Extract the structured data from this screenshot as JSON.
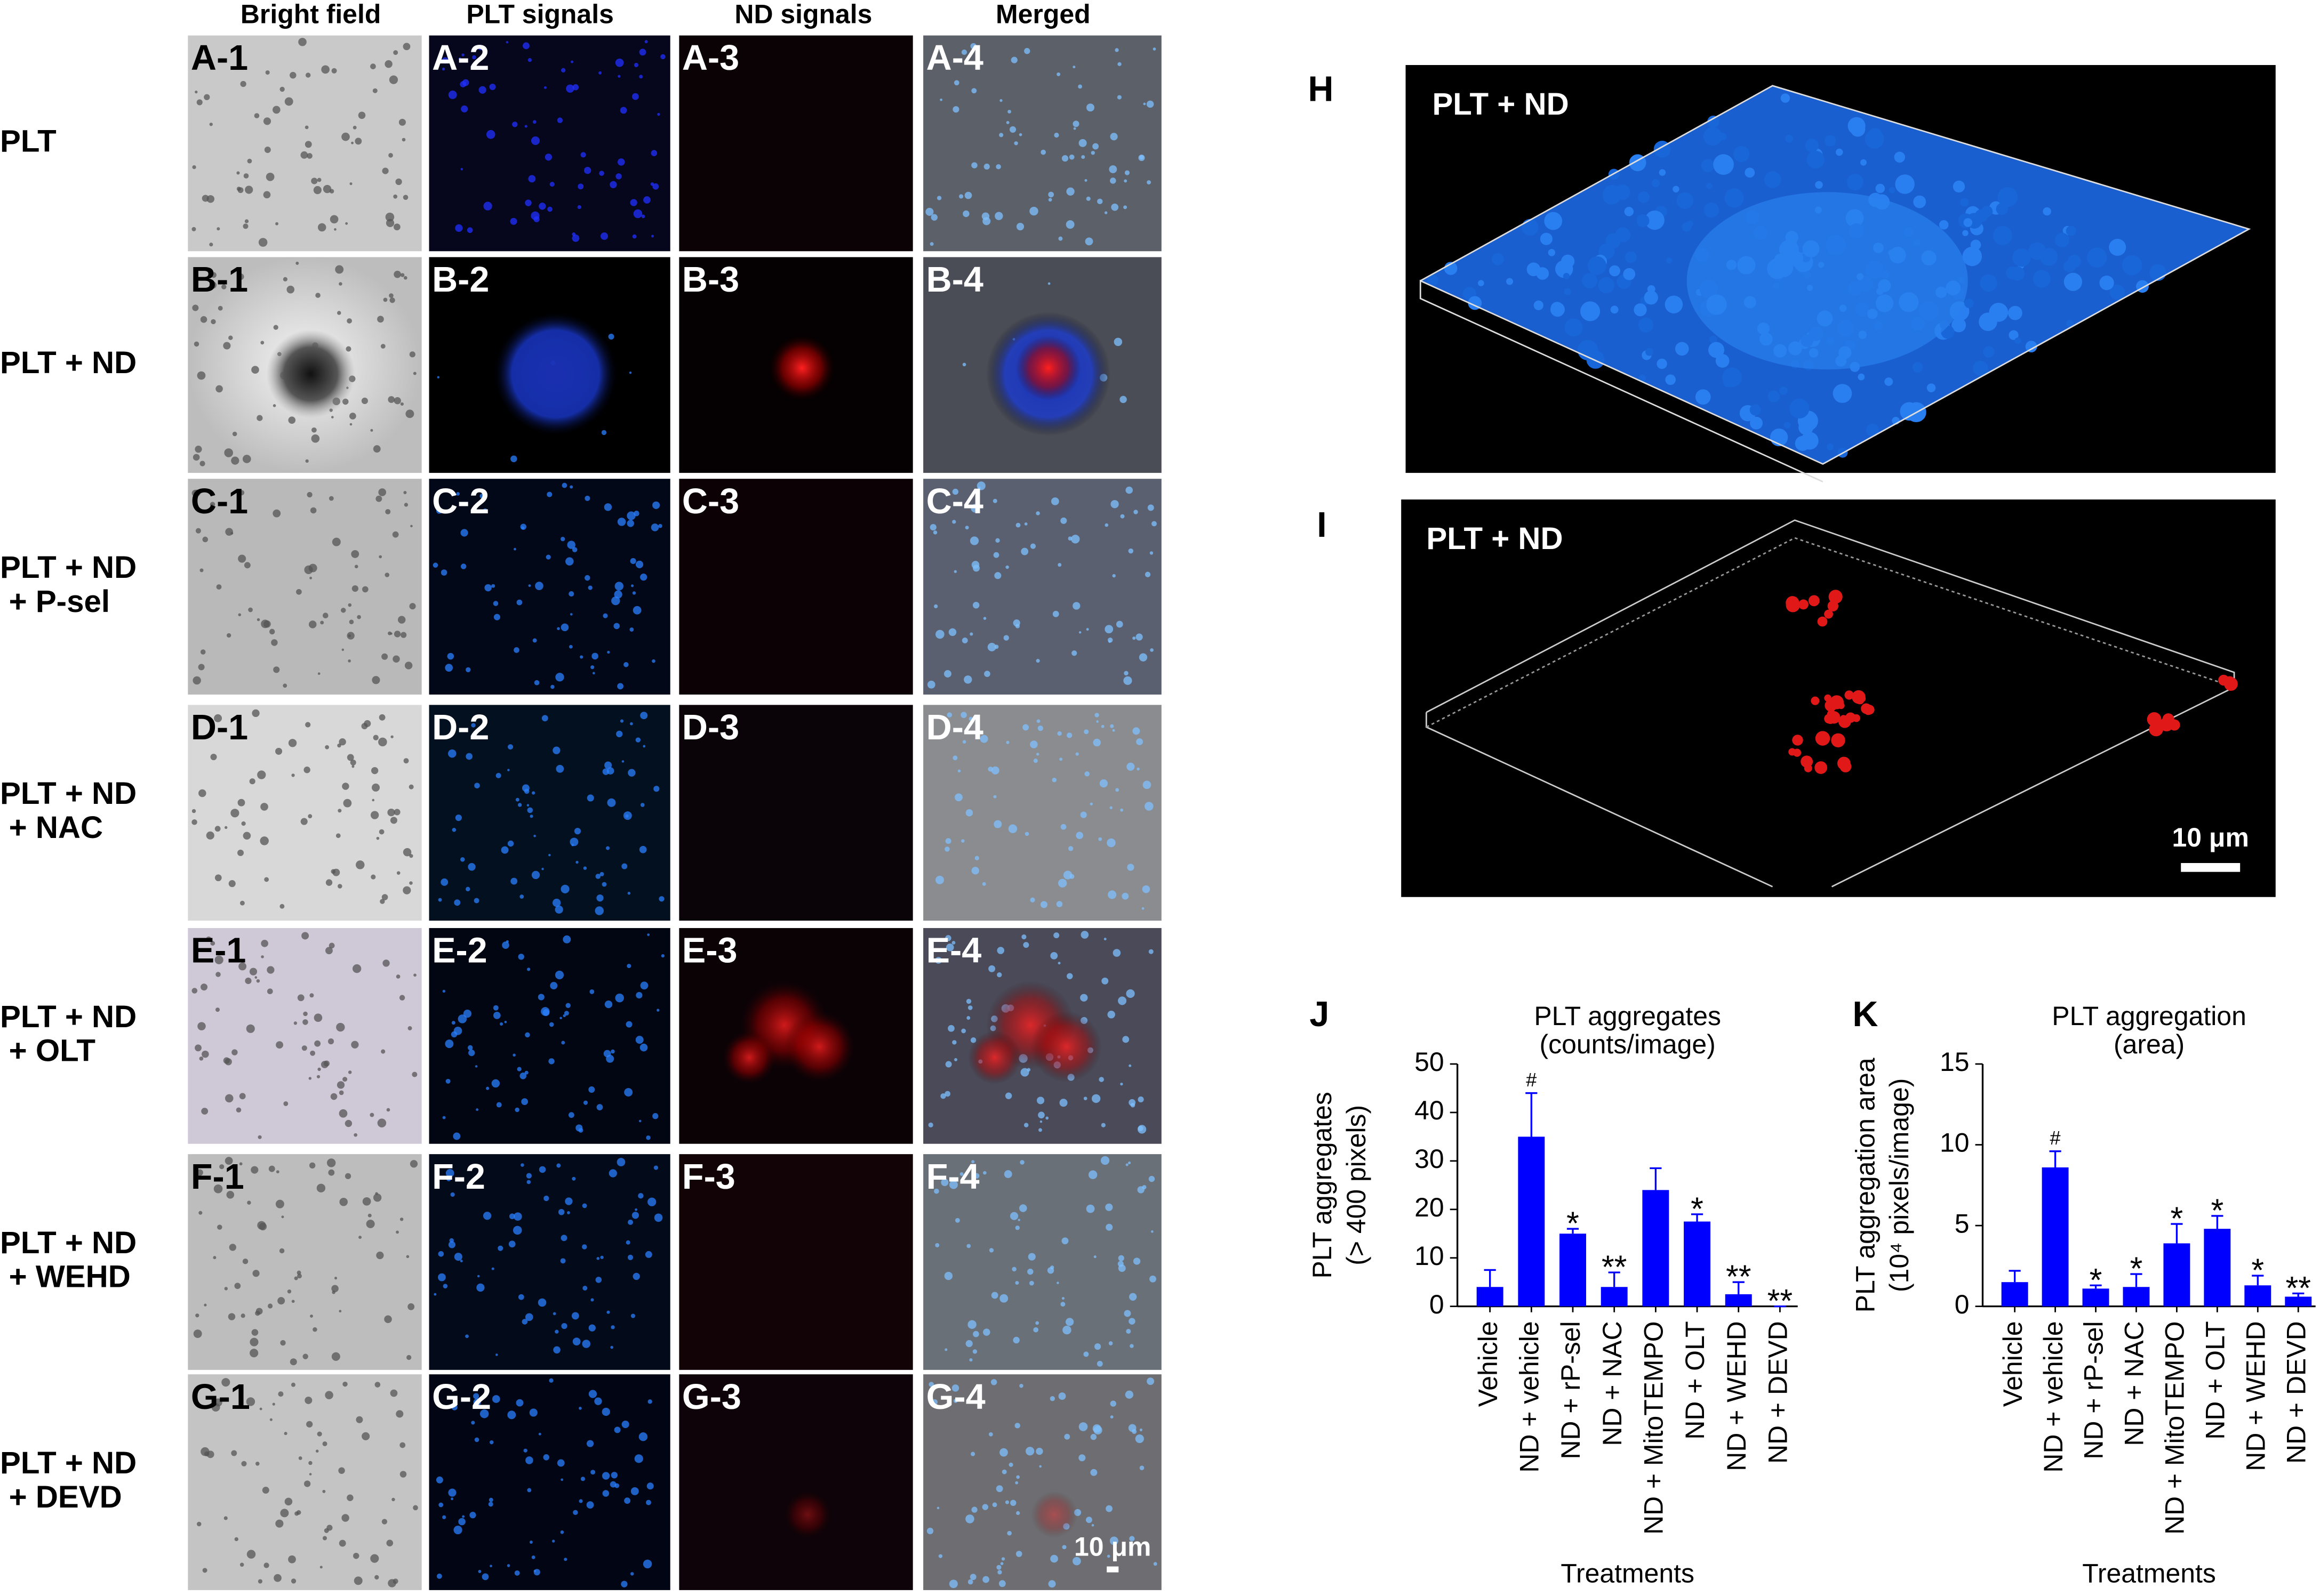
{
  "figure": {
    "column_headers": [
      "Bright field",
      "PLT signals",
      "ND signals",
      "Merged"
    ],
    "rows": [
      {
        "label": [
          "PLT"
        ],
        "panels": [
          "A-1",
          "A-2",
          "A-3",
          "A-4"
        ]
      },
      {
        "label": [
          "PLT + ND"
        ],
        "panels": [
          "B-1",
          "B-2",
          "B-3",
          "B-4"
        ]
      },
      {
        "label": [
          "PLT + ND",
          "+ P-sel"
        ],
        "panels": [
          "C-1",
          "C-2",
          "C-3",
          "C-4"
        ]
      },
      {
        "label": [
          "PLT + ND",
          "+ NAC"
        ],
        "panels": [
          "D-1",
          "D-2",
          "D-3",
          "D-4"
        ]
      },
      {
        "label": [
          "PLT + ND",
          "+ OLT"
        ],
        "panels": [
          "E-1",
          "E-2",
          "E-3",
          "E-4"
        ]
      },
      {
        "label": [
          "PLT + ND",
          "+ WEHD"
        ],
        "panels": [
          "F-1",
          "F-2",
          "F-3",
          "F-4"
        ]
      },
      {
        "label": [
          "PLT + ND",
          "+ DEVD"
        ],
        "panels": [
          "G-1",
          "G-2",
          "G-3",
          "G-4"
        ]
      }
    ],
    "scale_bar": "10 μm"
  },
  "h_panel": {
    "letter": "H",
    "label": "PLT + ND"
  },
  "i_panel": {
    "letter": "I",
    "label": "PLT + ND",
    "scale_bar": "10 μm"
  },
  "chart_data": [
    {
      "type": "bar",
      "panel": "J",
      "title": "PLT aggregates",
      "subtitle": "(counts/image)",
      "ylabel": [
        "PLT aggregates",
        "(> 400 pixels)"
      ],
      "xlabel": "Treatments",
      "categories": [
        "Vehicle",
        "ND + vehicle",
        "ND + rP-sel",
        "ND + NAC",
        "ND + MitoTEMPO",
        "ND + OLT",
        "ND + WEHD",
        "ND + DEVD"
      ],
      "values": [
        4,
        35,
        15,
        4,
        24,
        17.5,
        2.5,
        0
      ],
      "errors": [
        3.5,
        9,
        1,
        3,
        4.5,
        1.5,
        2.5,
        0
      ],
      "annotations": [
        null,
        "#",
        "*",
        "**",
        null,
        "*",
        "**",
        "**"
      ],
      "color": "#0000ff",
      "ylim": [
        0,
        50
      ],
      "yticks": [
        0,
        10,
        20,
        30,
        40,
        50
      ]
    },
    {
      "type": "bar",
      "panel": "K",
      "title": "PLT aggregation",
      "subtitle": "(area)",
      "ylabel": [
        "PLT aggregation area",
        "(10⁴ pixels/image)"
      ],
      "xlabel": "Treatments",
      "categories": [
        "Vehicle",
        "ND + vehicle",
        "ND + rP-sel",
        "ND + NAC",
        "ND + MitoTEMPO",
        "ND + OLT",
        "ND + WEHD",
        "ND + DEVD"
      ],
      "values": [
        1.5,
        8.6,
        1.1,
        1.2,
        3.9,
        4.8,
        1.3,
        0.6
      ],
      "errors": [
        0.7,
        1,
        0.2,
        0.8,
        1.2,
        0.8,
        0.6,
        0.2
      ],
      "annotations": [
        null,
        "#",
        "*",
        "*",
        "*",
        "*",
        "*",
        "**"
      ],
      "color": "#0000ff",
      "ylim": [
        0,
        15
      ],
      "yticks": [
        0,
        5,
        10,
        15
      ]
    }
  ]
}
